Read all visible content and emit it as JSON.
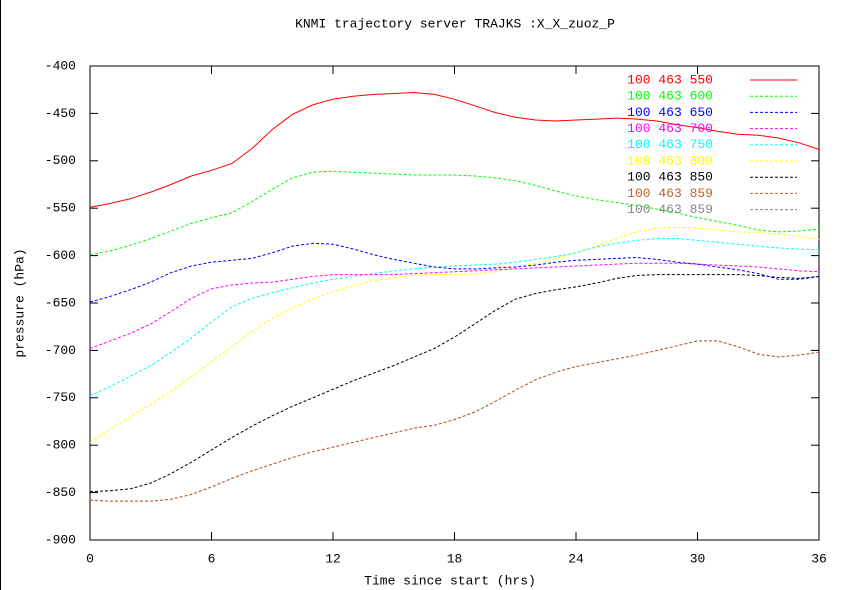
{
  "chart_data": {
    "type": "line",
    "title": "KNMI trajectory server TRAJKS :X_X_zuoz_P",
    "x_label": "Time since start (hrs)",
    "y_label": "pressure (hPa)",
    "legend": "top-right",
    "x": [
      0,
      1,
      2,
      3,
      4,
      5,
      6,
      7,
      8,
      9,
      10,
      11,
      12,
      13,
      14,
      15,
      16,
      17,
      18,
      19,
      20,
      21,
      22,
      23,
      24,
      25,
      26,
      27,
      28,
      29,
      30,
      31,
      32,
      33,
      34,
      35,
      36
    ],
    "xlim": [
      0,
      36
    ],
    "xticks": [
      0,
      6,
      12,
      18,
      24,
      30,
      36
    ],
    "ylim": [
      -900,
      -400
    ],
    "yticks": [
      -400,
      -450,
      -500,
      -550,
      -600,
      -650,
      -700,
      -750,
      -800,
      -850,
      -900
    ],
    "series": [
      {
        "name": "100 463 550",
        "color": "#ff0000",
        "values": [
          -549,
          -545,
          -540,
          -533,
          -525,
          -516,
          -510,
          -503,
          -487,
          -467,
          -451,
          -441,
          -435,
          -432,
          -430,
          -429,
          -428,
          -430,
          -435,
          -442,
          -449,
          -454,
          -457,
          -458,
          -457,
          -456,
          -455,
          -456,
          -458,
          -462,
          -465,
          -469,
          -472,
          -473,
          -476,
          -481,
          -488
        ]
      },
      {
        "name": "100 463 600",
        "color": "#00ff00",
        "values": [
          -599,
          -595,
          -589,
          -582,
          -574,
          -566,
          -560,
          -555,
          -543,
          -530,
          -518,
          -512,
          -511,
          -512,
          -513,
          -514,
          -515,
          -515,
          -515,
          -516,
          -518,
          -521,
          -526,
          -532,
          -537,
          -541,
          -544,
          -547,
          -551,
          -555,
          -560,
          -564,
          -568,
          -573,
          -575,
          -574,
          -572
        ]
      },
      {
        "name": "100 463 650",
        "color": "#0000ff",
        "values": [
          -649,
          -643,
          -636,
          -628,
          -618,
          -611,
          -607,
          -605,
          -603,
          -597,
          -590,
          -587,
          -588,
          -593,
          -599,
          -604,
          -608,
          -612,
          -614,
          -614,
          -613,
          -612,
          -610,
          -607,
          -605,
          -604,
          -603,
          -602,
          -604,
          -607,
          -609,
          -612,
          -615,
          -619,
          -625,
          -625,
          -622
        ]
      },
      {
        "name": "100 463 700",
        "color": "#ff00ff",
        "values": [
          -698,
          -690,
          -682,
          -672,
          -659,
          -645,
          -635,
          -631,
          -629,
          -628,
          -625,
          -622,
          -620,
          -620,
          -620,
          -620,
          -619,
          -618,
          -617,
          -616,
          -615,
          -614,
          -613,
          -612,
          -611,
          -610,
          -609,
          -608,
          -608,
          -608,
          -609,
          -610,
          -611,
          -612,
          -614,
          -616,
          -617
        ]
      },
      {
        "name": "100 463 750",
        "color": "#00ffff",
        "values": [
          -748,
          -738,
          -727,
          -716,
          -702,
          -687,
          -670,
          -654,
          -645,
          -639,
          -634,
          -629,
          -625,
          -622,
          -619,
          -616,
          -614,
          -612,
          -611,
          -610,
          -609,
          -607,
          -604,
          -601,
          -597,
          -591,
          -587,
          -584,
          -582,
          -582,
          -584,
          -586,
          -588,
          -590,
          -592,
          -593,
          -594
        ]
      },
      {
        "name": "100 463 800",
        "color": "#ffff00",
        "values": [
          -797,
          -783,
          -770,
          -757,
          -743,
          -728,
          -712,
          -696,
          -680,
          -666,
          -655,
          -646,
          -638,
          -632,
          -627,
          -623,
          -621,
          -620,
          -620,
          -619,
          -617,
          -613,
          -608,
          -603,
          -597,
          -590,
          -582,
          -575,
          -571,
          -570,
          -571,
          -573,
          -575,
          -576,
          -577,
          -580,
          -583
        ]
      },
      {
        "name": "100 463 850",
        "color": "#000000",
        "values": [
          -849,
          -848,
          -846,
          -840,
          -830,
          -818,
          -805,
          -792,
          -780,
          -769,
          -759,
          -750,
          -741,
          -732,
          -724,
          -716,
          -707,
          -698,
          -686,
          -672,
          -658,
          -646,
          -640,
          -636,
          -633,
          -629,
          -624,
          -621,
          -620,
          -620,
          -620,
          -620,
          -620,
          -621,
          -623,
          -624,
          -622
        ]
      },
      {
        "name": "100 463 859",
        "color": "#c0602f",
        "values": [
          -858,
          -859,
          -859,
          -859,
          -857,
          -852,
          -844,
          -835,
          -827,
          -820,
          -813,
          -807,
          -802,
          -797,
          -792,
          -787,
          -782,
          -779,
          -773,
          -765,
          -754,
          -742,
          -731,
          -723,
          -717,
          -713,
          -709,
          -705,
          -700,
          -695,
          -690,
          -690,
          -696,
          -704,
          -707,
          -705,
          -702
        ]
      },
      {
        "name": "100 463 859",
        "color": "#888888",
        "values": [
          -858,
          -859,
          -859,
          -859,
          -857,
          -852,
          -844,
          -835,
          -827,
          -820,
          -813,
          -807,
          -802,
          -797,
          -792,
          -787,
          -782,
          -779,
          -773,
          -765,
          -754,
          -742,
          -731,
          -723,
          -717,
          -713,
          -709,
          -705,
          -700,
          -695,
          -690,
          -690,
          -696,
          -704,
          -707,
          -705,
          -702
        ]
      }
    ]
  }
}
